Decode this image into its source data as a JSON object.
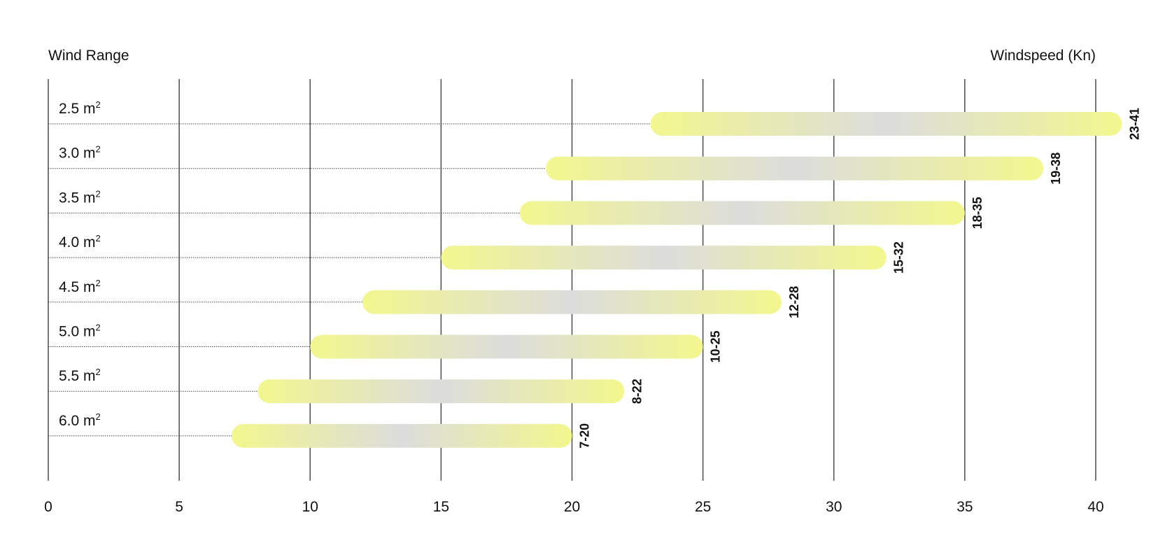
{
  "chart_data": {
    "type": "bar",
    "title": "",
    "left_header": "Wind Range",
    "right_header": "Windspeed (Kn)",
    "unit_symbol": "m",
    "unit_superscript": "2",
    "xlim": [
      0,
      40
    ],
    "x_ticks": [
      "0",
      "5",
      "10",
      "15",
      "20",
      "25",
      "30",
      "35",
      "40"
    ],
    "x_tick_values": [
      0,
      5,
      10,
      15,
      20,
      25,
      30,
      35,
      40
    ],
    "grid": true,
    "colors": {
      "bar_end": "#f2f78e",
      "bar_mid": "#dcdcdc",
      "grid": "#555555",
      "text": "#111111"
    },
    "rows": [
      {
        "label": "2.5",
        "min": 23,
        "max": 41,
        "range_label": "23-41"
      },
      {
        "label": "3.0",
        "min": 19,
        "max": 38,
        "range_label": "19-38"
      },
      {
        "label": "3.5",
        "min": 18,
        "max": 35,
        "range_label": "18-35"
      },
      {
        "label": "4.0",
        "min": 15,
        "max": 32,
        "range_label": "15-32"
      },
      {
        "label": "4.5",
        "min": 12,
        "max": 28,
        "range_label": "12-28"
      },
      {
        "label": "5.0",
        "min": 10,
        "max": 25,
        "range_label": "10-25"
      },
      {
        "label": "5.5",
        "min": 8,
        "max": 22,
        "range_label": "8-22"
      },
      {
        "label": "6.0",
        "min": 7,
        "max": 20,
        "range_label": "7-20"
      }
    ]
  }
}
